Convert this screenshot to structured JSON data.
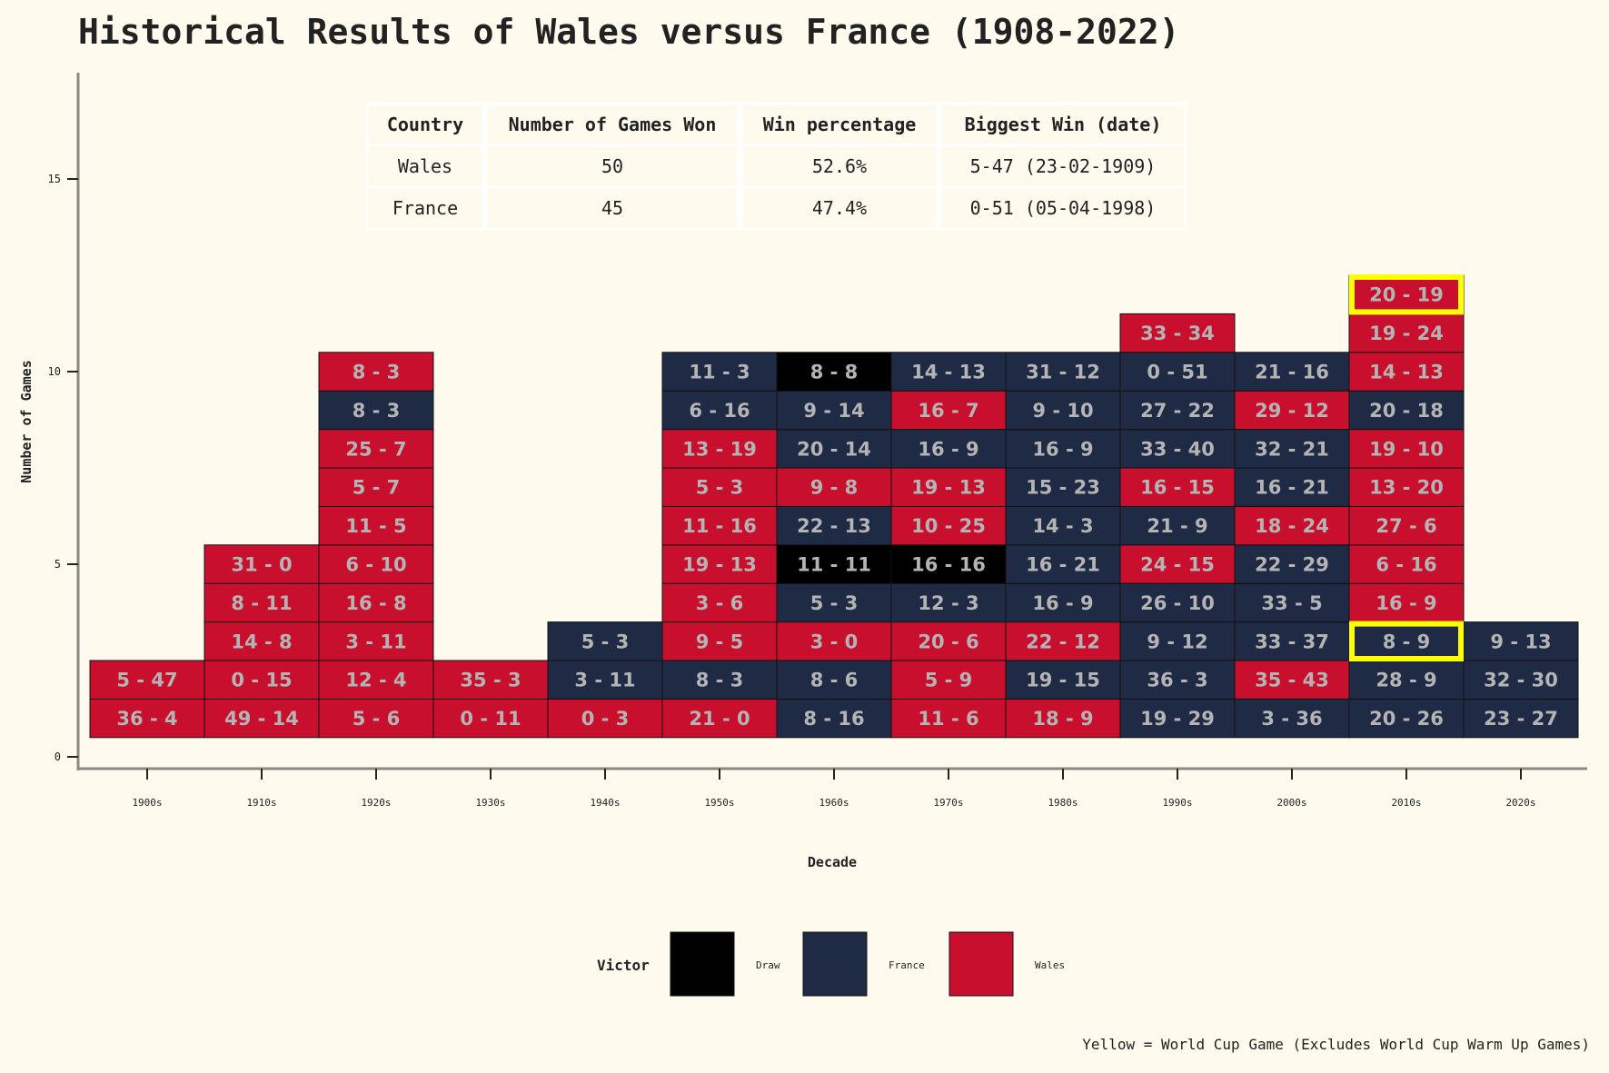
{
  "chart_data": {
    "type": "heatmap",
    "title": "Historical Results of Wales versus France (1908-2022)",
    "xlabel": "Decade",
    "ylabel": "Number of Games",
    "ylim": [
      0,
      17.5
    ],
    "yticks": [
      0,
      5,
      10,
      15
    ],
    "grid": false,
    "categories": [
      "1900s",
      "1910s",
      "1920s",
      "1930s",
      "1940s",
      "1950s",
      "1960s",
      "1970s",
      "1980s",
      "1990s",
      "2000s",
      "2010s",
      "2020s"
    ],
    "colors": {
      "Draw": "#000000",
      "France": "#1f2a45",
      "Wales": "#c8102e",
      "World Cup": "#ffff00"
    },
    "legend": {
      "title": "Victor",
      "position": "bottom",
      "entries": [
        "Draw",
        "France",
        "Wales"
      ]
    },
    "caption": "Yellow = World Cup Game (Excludes World Cup Warm Up Games)",
    "summary_table": {
      "headers": [
        "Country",
        "Number of Games Won",
        "Win percentage",
        "Biggest Win (date)"
      ],
      "rows": [
        [
          "Wales",
          "50",
          "52.6%",
          "5-47 (23-02-1909)"
        ],
        [
          "France",
          "45",
          "47.4%",
          "0-51 (05-04-1998)"
        ]
      ]
    },
    "columns": [
      [
        {
          "score": "36 - 4",
          "victor": "Wales"
        },
        {
          "score": "5 - 47",
          "victor": "Wales"
        }
      ],
      [
        {
          "score": "49 - 14",
          "victor": "Wales"
        },
        {
          "score": "0 - 15",
          "victor": "Wales"
        },
        {
          "score": "14 - 8",
          "victor": "Wales"
        },
        {
          "score": "8 - 11",
          "victor": "Wales"
        },
        {
          "score": "31 - 0",
          "victor": "Wales"
        }
      ],
      [
        {
          "score": "5 - 6",
          "victor": "Wales"
        },
        {
          "score": "12 - 4",
          "victor": "Wales"
        },
        {
          "score": "3 - 11",
          "victor": "Wales"
        },
        {
          "score": "16 - 8",
          "victor": "Wales"
        },
        {
          "score": "6 - 10",
          "victor": "Wales"
        },
        {
          "score": "11 - 5",
          "victor": "Wales"
        },
        {
          "score": "5 - 7",
          "victor": "Wales"
        },
        {
          "score": "25 - 7",
          "victor": "Wales"
        },
        {
          "score": "8 - 3",
          "victor": "France"
        },
        {
          "score": "8 - 3",
          "victor": "Wales"
        }
      ],
      [
        {
          "score": "0 - 11",
          "victor": "Wales"
        },
        {
          "score": "35 - 3",
          "victor": "Wales"
        }
      ],
      [
        {
          "score": "0 - 3",
          "victor": "Wales"
        },
        {
          "score": "3 - 11",
          "victor": "France"
        },
        {
          "score": "5 - 3",
          "victor": "France"
        }
      ],
      [
        {
          "score": "21 - 0",
          "victor": "Wales"
        },
        {
          "score": "8 - 3",
          "victor": "France"
        },
        {
          "score": "9 - 5",
          "victor": "Wales"
        },
        {
          "score": "3 - 6",
          "victor": "Wales"
        },
        {
          "score": "19 - 13",
          "victor": "Wales"
        },
        {
          "score": "11 - 16",
          "victor": "Wales"
        },
        {
          "score": "5 - 3",
          "victor": "Wales"
        },
        {
          "score": "13 - 19",
          "victor": "Wales"
        },
        {
          "score": "6 - 16",
          "victor": "France"
        },
        {
          "score": "11 - 3",
          "victor": "France"
        }
      ],
      [
        {
          "score": "8 - 16",
          "victor": "France"
        },
        {
          "score": "8 - 6",
          "victor": "France"
        },
        {
          "score": "3 - 0",
          "victor": "Wales"
        },
        {
          "score": "5 - 3",
          "victor": "France"
        },
        {
          "score": "11 - 11",
          "victor": "Draw"
        },
        {
          "score": "22 - 13",
          "victor": "France"
        },
        {
          "score": "9 - 8",
          "victor": "Wales"
        },
        {
          "score": "20 - 14",
          "victor": "France"
        },
        {
          "score": "9 - 14",
          "victor": "France"
        },
        {
          "score": "8 - 8",
          "victor": "Draw"
        }
      ],
      [
        {
          "score": "11 - 6",
          "victor": "Wales"
        },
        {
          "score": "5 - 9",
          "victor": "Wales"
        },
        {
          "score": "20 - 6",
          "victor": "Wales"
        },
        {
          "score": "12 - 3",
          "victor": "France"
        },
        {
          "score": "16 - 16",
          "victor": "Draw"
        },
        {
          "score": "10 - 25",
          "victor": "Wales"
        },
        {
          "score": "19 - 13",
          "victor": "Wales"
        },
        {
          "score": "16 - 9",
          "victor": "France"
        },
        {
          "score": "16 - 7",
          "victor": "Wales"
        },
        {
          "score": "14 - 13",
          "victor": "France"
        }
      ],
      [
        {
          "score": "18 - 9",
          "victor": "Wales"
        },
        {
          "score": "19 - 15",
          "victor": "France"
        },
        {
          "score": "22 - 12",
          "victor": "Wales"
        },
        {
          "score": "16 - 9",
          "victor": "France"
        },
        {
          "score": "16 - 21",
          "victor": "France"
        },
        {
          "score": "14 - 3",
          "victor": "France"
        },
        {
          "score": "15 - 23",
          "victor": "France"
        },
        {
          "score": "16 - 9",
          "victor": "France"
        },
        {
          "score": "9 - 10",
          "victor": "France"
        },
        {
          "score": "31 - 12",
          "victor": "France"
        }
      ],
      [
        {
          "score": "19 - 29",
          "victor": "France"
        },
        {
          "score": "36 - 3",
          "victor": "France"
        },
        {
          "score": "9 - 12",
          "victor": "France"
        },
        {
          "score": "26 - 10",
          "victor": "France"
        },
        {
          "score": "24 - 15",
          "victor": "Wales"
        },
        {
          "score": "21 - 9",
          "victor": "France"
        },
        {
          "score": "16 - 15",
          "victor": "Wales"
        },
        {
          "score": "33 - 40",
          "victor": "France"
        },
        {
          "score": "27 - 22",
          "victor": "France"
        },
        {
          "score": "0 - 51",
          "victor": "France"
        },
        {
          "score": "33 - 34",
          "victor": "Wales"
        }
      ],
      [
        {
          "score": "3 - 36",
          "victor": "France"
        },
        {
          "score": "35 - 43",
          "victor": "Wales"
        },
        {
          "score": "33 - 37",
          "victor": "France"
        },
        {
          "score": "33 - 5",
          "victor": "France"
        },
        {
          "score": "22 - 29",
          "victor": "France"
        },
        {
          "score": "18 - 24",
          "victor": "Wales"
        },
        {
          "score": "16 - 21",
          "victor": "France"
        },
        {
          "score": "32 - 21",
          "victor": "France"
        },
        {
          "score": "29 - 12",
          "victor": "Wales"
        },
        {
          "score": "21 - 16",
          "victor": "France"
        }
      ],
      [
        {
          "score": "20 - 26",
          "victor": "France"
        },
        {
          "score": "28 - 9",
          "victor": "France"
        },
        {
          "score": "8 - 9",
          "victor": "France",
          "world_cup": true
        },
        {
          "score": "16 - 9",
          "victor": "Wales"
        },
        {
          "score": "6 - 16",
          "victor": "Wales"
        },
        {
          "score": "27 - 6",
          "victor": "Wales"
        },
        {
          "score": "13 - 20",
          "victor": "Wales"
        },
        {
          "score": "19 - 10",
          "victor": "Wales"
        },
        {
          "score": "20 - 18",
          "victor": "France"
        },
        {
          "score": "14 - 13",
          "victor": "Wales"
        },
        {
          "score": "19 - 24",
          "victor": "Wales"
        },
        {
          "score": "20 - 19",
          "victor": "Wales",
          "world_cup": true
        }
      ],
      [
        {
          "score": "23 - 27",
          "victor": "France"
        },
        {
          "score": "32 - 30",
          "victor": "France"
        },
        {
          "score": "9 - 13",
          "victor": "France"
        }
      ]
    ]
  }
}
